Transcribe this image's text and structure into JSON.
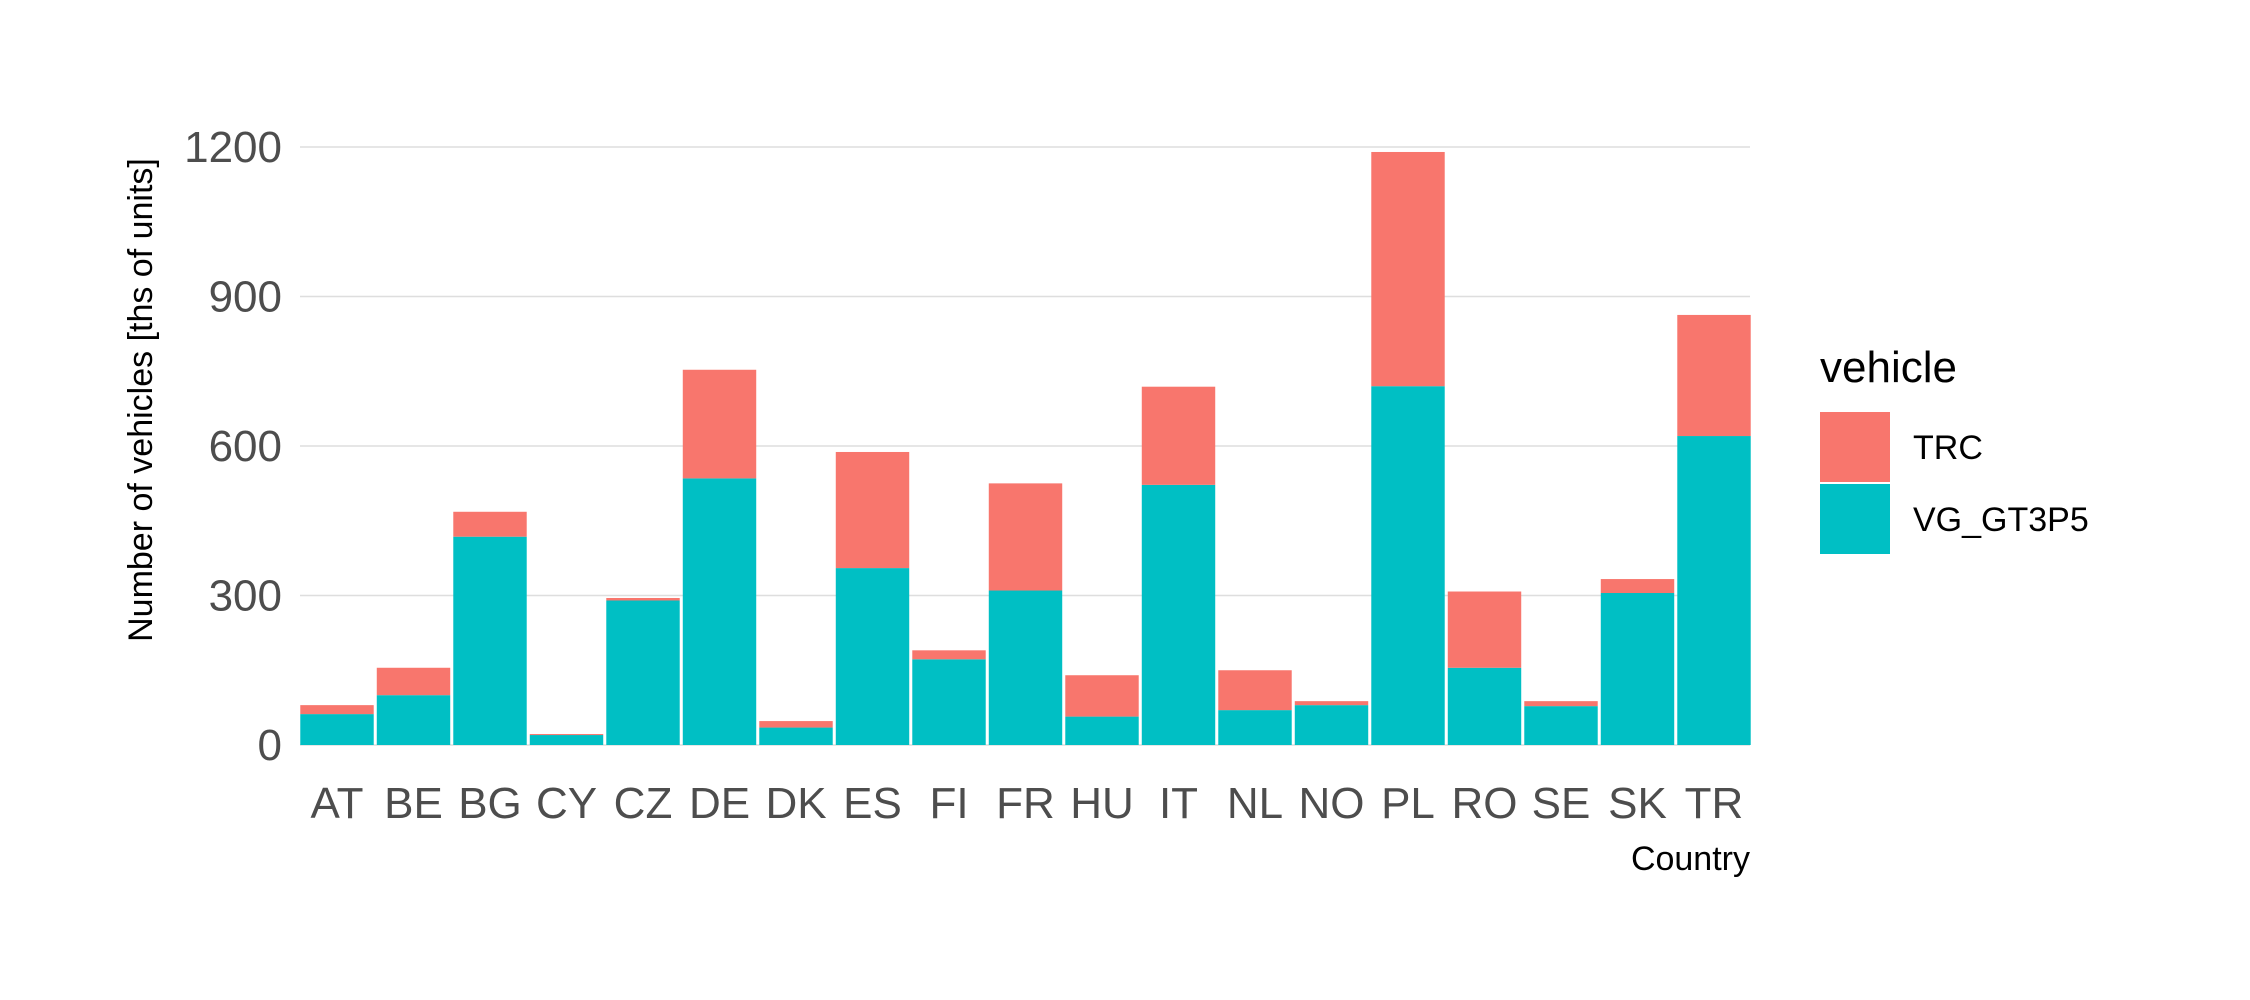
{
  "chart_data": {
    "type": "bar",
    "stacked": true,
    "title": "",
    "xlabel": "Country",
    "ylabel": "Number of vehicles [ths of units]",
    "categories": [
      "AT",
      "BE",
      "BG",
      "CY",
      "CZ",
      "DE",
      "DK",
      "ES",
      "FI",
      "FR",
      "HU",
      "IT",
      "NL",
      "NO",
      "PL",
      "RO",
      "SE",
      "SK",
      "TR"
    ],
    "series": [
      {
        "name": "VG_GT3P5",
        "color": "#00BFC4",
        "values": [
          62,
          100,
          418,
          20,
          290,
          535,
          35,
          355,
          172,
          310,
          57,
          522,
          70,
          80,
          720,
          155,
          78,
          305,
          620
        ]
      },
      {
        "name": "TRC",
        "color": "#F8766D",
        "values": [
          18,
          55,
          50,
          2,
          5,
          218,
          13,
          233,
          18,
          215,
          83,
          197,
          80,
          8,
          470,
          153,
          10,
          28,
          243
        ]
      }
    ],
    "ylim": [
      0,
      1300
    ],
    "yticks": [
      0,
      300,
      600,
      900,
      1200
    ],
    "grid": true,
    "legend": {
      "title": "vehicle",
      "position": "right",
      "order": [
        "TRC",
        "VG_GT3P5"
      ]
    }
  }
}
